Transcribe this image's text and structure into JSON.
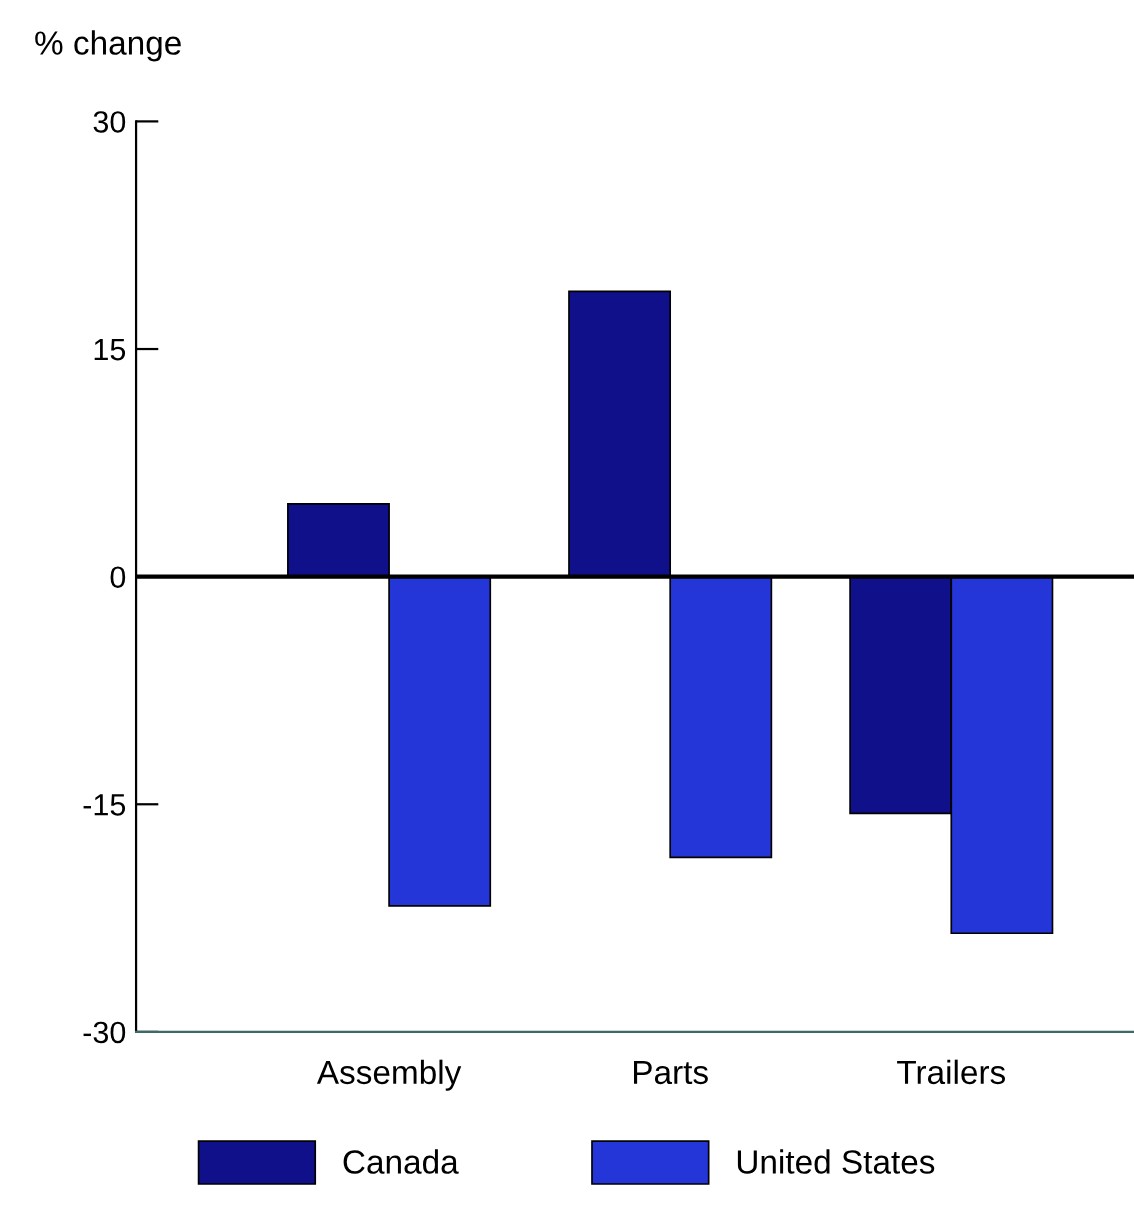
{
  "chart_data": {
    "type": "bar",
    "ylabel": "% change",
    "categories": [
      "Assembly",
      "Parts",
      "Trailers"
    ],
    "series": [
      {
        "name": "Canada",
        "color": "#10108a",
        "values": [
          4.8,
          18.8,
          -15.6
        ]
      },
      {
        "name": "United States",
        "color": "#2436d8",
        "values": [
          -21.7,
          -18.5,
          -23.5
        ]
      }
    ],
    "ylim": [
      -30,
      30
    ],
    "yticks": [
      -30,
      -15,
      0,
      15,
      30
    ],
    "ref_lines": [
      {
        "axis": "y",
        "value": 0,
        "color": "#000000"
      }
    ],
    "grid": false,
    "legend": "bottom"
  }
}
